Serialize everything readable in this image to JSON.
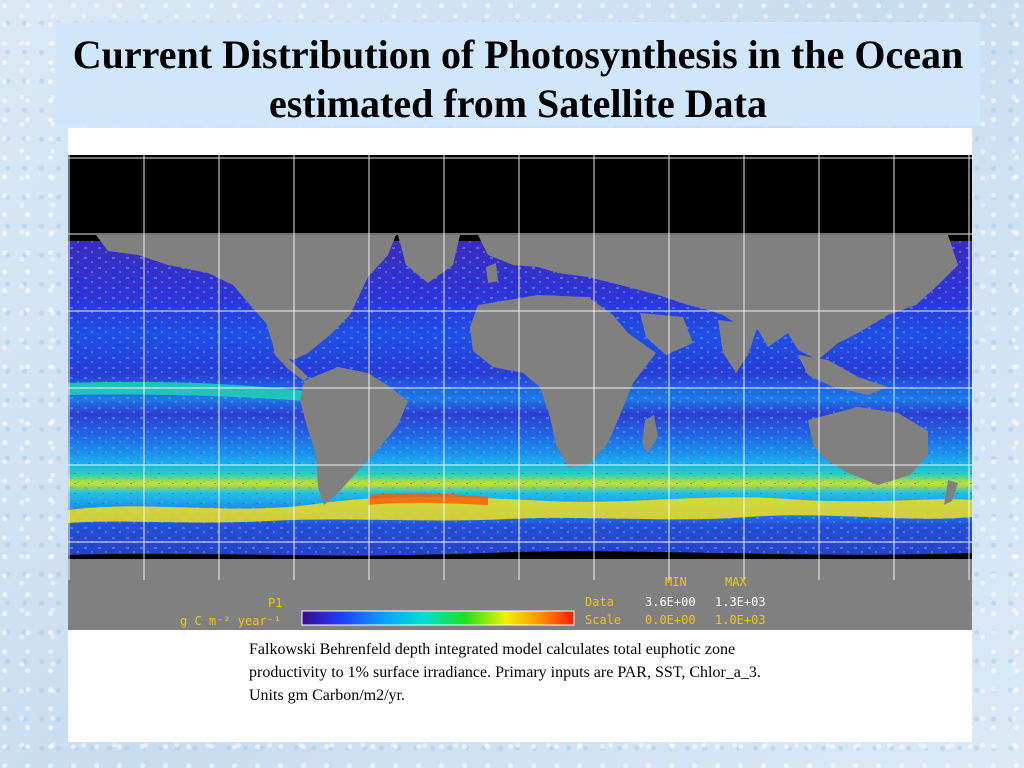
{
  "slide": {
    "title": "Current Distribution of Photosynthesis in the Ocean estimated from Satellite Data",
    "caption": "Falkowski Behrenfeld depth  integrated model calculates total euphotic zone productivity to 1% surface irradiance.  Primary inputs are PAR, SST, Chlor_a_3.  Units gm Carbon/m2/yr."
  },
  "map": {
    "panel_label": "P1",
    "units_label": "g C m⁻² year⁻¹",
    "stats": {
      "min_header": "MIN",
      "max_header": "MAX",
      "data_label": "Data",
      "data_min": "3.6E+00",
      "data_max": "1.3E+03",
      "scale_label": "Scale",
      "scale_min": "0.0E+00",
      "scale_max": "1.0E+03"
    },
    "colors": {
      "land": "#808080",
      "no_data": "#000000",
      "grid": "#ffffff",
      "stats_text": "#f0c419",
      "values_text": "#ffffff"
    },
    "colorbar": [
      "#3a0a8a",
      "#1f3cff",
      "#0aa0ff",
      "#00e0d0",
      "#20e020",
      "#f0f000",
      "#ff8c00",
      "#ff1a00"
    ]
  }
}
